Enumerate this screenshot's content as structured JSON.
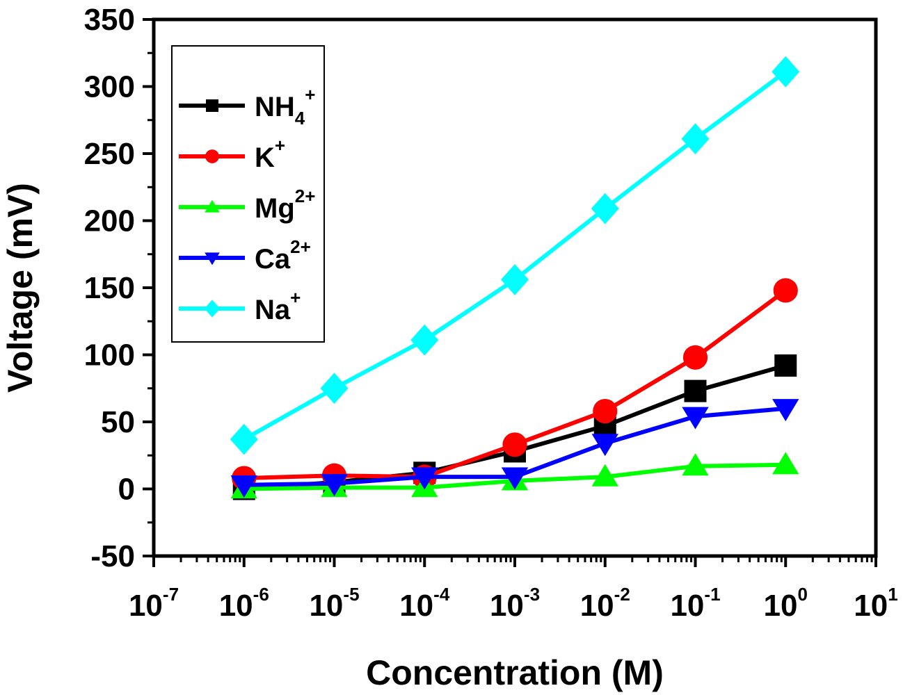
{
  "chart_data": {
    "type": "line",
    "title": "",
    "xlabel": "Concentration (M)",
    "ylabel": "Voltage (mV)",
    "x_scale": "log",
    "xlim_exponent": [
      -7,
      1
    ],
    "ylim": [
      -50,
      350
    ],
    "y_ticks": [
      "-50",
      "0",
      "50",
      "100",
      "150",
      "200",
      "250",
      "300",
      "350"
    ],
    "x_ticks": [
      {
        "base": "10",
        "exp": "-7"
      },
      {
        "base": "10",
        "exp": "-6"
      },
      {
        "base": "10",
        "exp": "-5"
      },
      {
        "base": "10",
        "exp": "-4"
      },
      {
        "base": "10",
        "exp": "-3"
      },
      {
        "base": "10",
        "exp": "-2"
      },
      {
        "base": "10",
        "exp": "-1"
      },
      {
        "base": "10",
        "exp": "0"
      },
      {
        "base": "10",
        "exp": "1"
      }
    ],
    "x_exponents": [
      -6,
      -5,
      -4,
      -3,
      -2,
      -1,
      0
    ],
    "legend_position": "top-left",
    "grid": false,
    "series": [
      {
        "name": "NH4+",
        "label_main": "NH",
        "label_sub": "4",
        "label_sup": "+",
        "color": "#000000",
        "marker": "square",
        "values": [
          0,
          5,
          12,
          28,
          47,
          73,
          92
        ]
      },
      {
        "name": "K+",
        "label_main": "K",
        "label_sub": "",
        "label_sup": "+",
        "color": "#ff0000",
        "marker": "circle",
        "values": [
          8,
          10,
          9,
          33,
          58,
          98,
          148
        ]
      },
      {
        "name": "Mg2+",
        "label_main": "Mg",
        "label_sub": "",
        "label_sup": "2+",
        "color": "#00ff00",
        "marker": "triangle-up",
        "values": [
          0,
          1,
          1,
          6,
          9,
          17,
          18
        ]
      },
      {
        "name": "Ca2+",
        "label_main": "Ca",
        "label_sub": "",
        "label_sup": "2+",
        "color": "#0000ff",
        "marker": "triangle-down",
        "values": [
          3,
          4,
          9,
          9,
          34,
          54,
          60
        ]
      },
      {
        "name": "Na+",
        "label_main": "Na",
        "label_sub": "",
        "label_sup": "+",
        "color": "#00ffff",
        "marker": "diamond",
        "values": [
          37,
          75,
          111,
          156,
          209,
          261,
          311
        ]
      }
    ]
  }
}
